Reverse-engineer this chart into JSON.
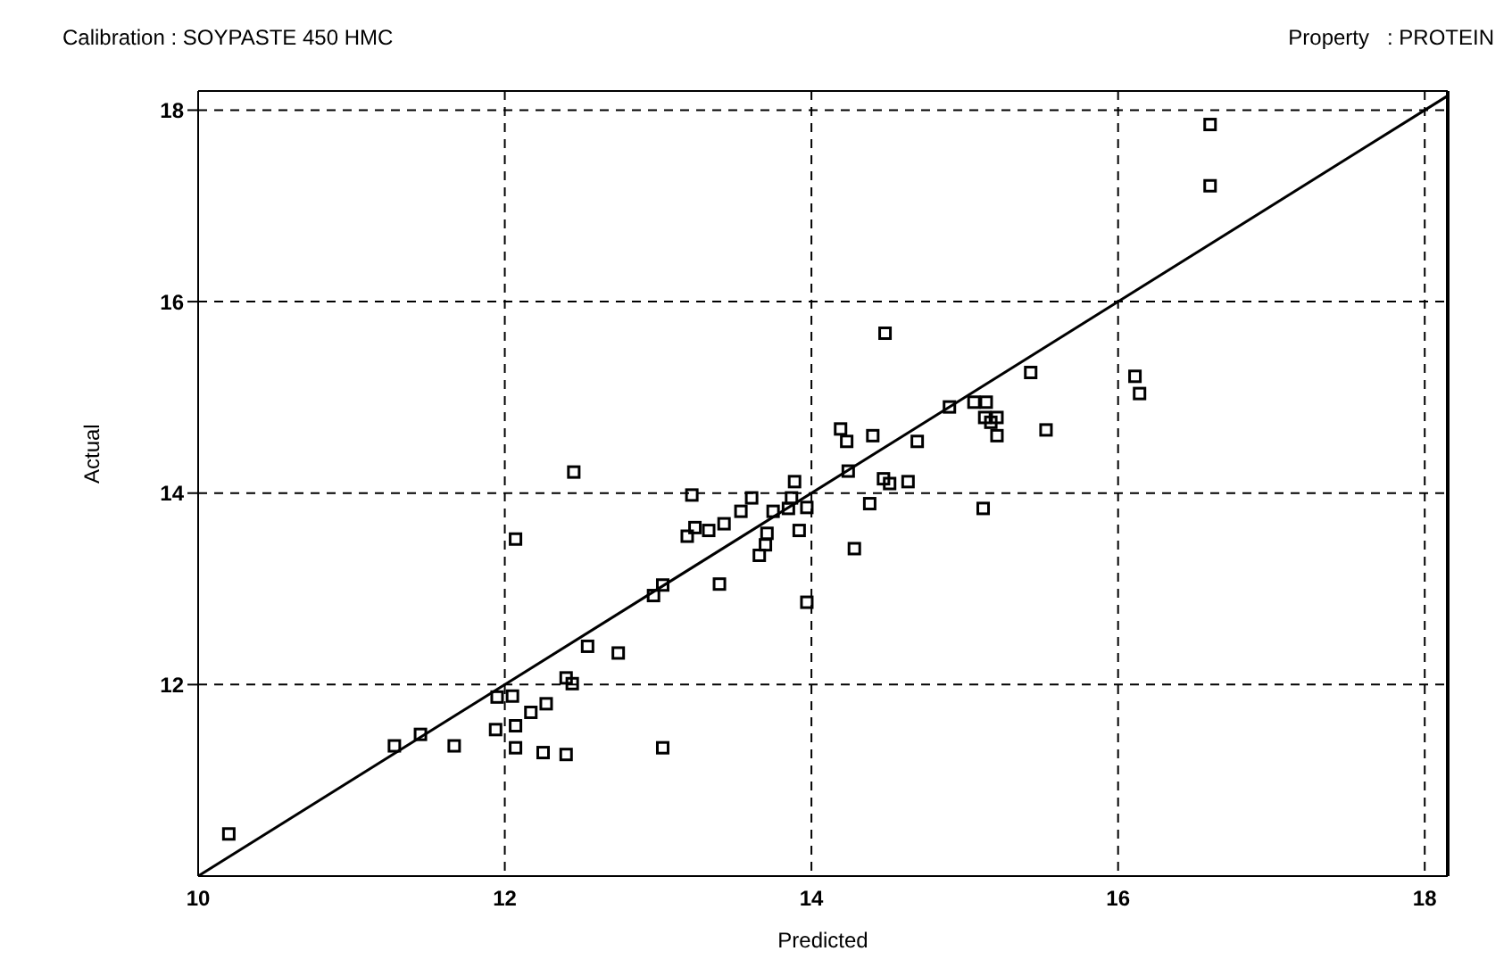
{
  "chart_data": {
    "type": "scatter",
    "title": "Calibration : SOYPASTE 450 HMC",
    "subtitle": "Property   : PROTEIN",
    "xlabel": "Predicted",
    "ylabel": "Actual",
    "xlim": [
      10,
      18.15
    ],
    "ylim": [
      10,
      18.2
    ],
    "xticks": [
      10,
      12,
      14,
      16,
      18
    ],
    "yticks": [
      12,
      14,
      16,
      18
    ],
    "grid": true,
    "marker": "square",
    "series": [
      {
        "color": "#000000",
        "x": [
          10.2,
          11.28,
          11.45,
          11.67,
          11.95,
          12.05,
          11.94,
          12.07,
          12.07,
          12.17,
          12.27,
          12.25,
          12.4,
          12.4,
          12.44,
          12.54,
          12.74,
          12.97,
          13.03,
          13.03,
          12.45,
          12.07,
          14.48,
          15.43,
          16.11,
          16.14,
          14.9,
          15.06,
          15.14,
          15.13,
          15.17,
          15.21,
          15.21,
          15.53,
          14.19,
          14.23,
          14.4,
          14.69,
          14.24,
          14.47,
          14.51,
          14.63,
          14.38,
          15.12,
          14.28,
          13.97,
          13.4,
          13.22,
          13.24,
          13.19,
          13.33,
          13.43,
          13.54,
          13.61,
          13.75,
          13.85,
          13.87,
          13.89,
          13.97,
          13.92,
          13.71,
          13.7,
          13.66,
          16.6,
          16.6
        ],
        "values": [
          10.44,
          11.36,
          11.48,
          11.36,
          11.87,
          11.88,
          11.53,
          11.57,
          11.34,
          11.71,
          11.8,
          11.29,
          11.27,
          12.07,
          12.01,
          12.4,
          12.33,
          12.93,
          13.04,
          11.34,
          14.22,
          13.52,
          15.67,
          15.26,
          15.22,
          15.04,
          14.9,
          14.95,
          14.95,
          14.79,
          14.74,
          14.79,
          14.6,
          14.66,
          14.67,
          14.54,
          14.6,
          14.54,
          14.23,
          14.15,
          14.1,
          14.12,
          13.89,
          13.84,
          13.42,
          12.86,
          13.05,
          13.98,
          13.64,
          13.55,
          13.61,
          13.68,
          13.81,
          13.95,
          13.81,
          13.84,
          13.95,
          14.12,
          13.85,
          13.61,
          13.58,
          13.46,
          13.35,
          17.85,
          17.21
        ]
      },
      {
        "type": "line",
        "color": "#000000",
        "marker": "none",
        "line_style": "solid",
        "x": [
          10,
          18.15
        ],
        "values": [
          10,
          18.15
        ]
      }
    ]
  }
}
